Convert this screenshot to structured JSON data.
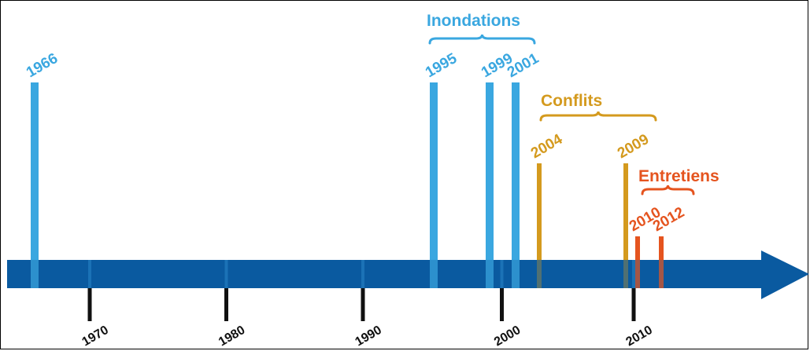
{
  "colors": {
    "axis": "#0a5aa0",
    "axis_dark": "#074c88",
    "tick": "#111111",
    "inondations": "#3aa7e0",
    "conflits": "#d49a1e",
    "entretiens": "#e5541f"
  },
  "axis": {
    "ticks": [
      "1970",
      "1980",
      "1990",
      "2000",
      "2010"
    ]
  },
  "groups": [
    {
      "name": "Inondations",
      "color_key": "inondations"
    },
    {
      "name": "Conflits",
      "color_key": "conflits"
    },
    {
      "name": "Entretiens",
      "color_key": "entretiens"
    }
  ],
  "events": [
    {
      "label": "1966",
      "year": 1966,
      "group": "Inondations"
    },
    {
      "label": "1995",
      "year": 1995,
      "group": "Inondations"
    },
    {
      "label": "1999",
      "year": 1999,
      "group": "Inondations"
    },
    {
      "label": "2001",
      "year": 2001,
      "group": "Inondations"
    },
    {
      "label": "2004",
      "year": 2004,
      "group": "Conflits"
    },
    {
      "label": "2009",
      "year": 2009,
      "group": "Conflits"
    },
    {
      "label": "2010",
      "year": 2010,
      "group": "Entretiens"
    },
    {
      "label": "2012",
      "year": 2012,
      "group": "Entretiens"
    }
  ]
}
